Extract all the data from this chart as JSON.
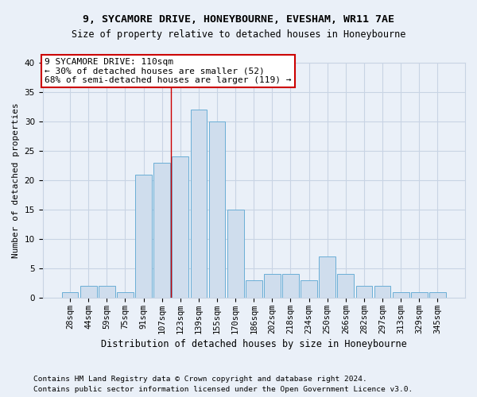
{
  "title1": "9, SYCAMORE DRIVE, HONEYBOURNE, EVESHAM, WR11 7AE",
  "title2": "Size of property relative to detached houses in Honeybourne",
  "xlabel": "Distribution of detached houses by size in Honeybourne",
  "ylabel": "Number of detached properties",
  "categories": [
    "28sqm",
    "44sqm",
    "59sqm",
    "75sqm",
    "91sqm",
    "107sqm",
    "123sqm",
    "139sqm",
    "155sqm",
    "170sqm",
    "186sqm",
    "202sqm",
    "218sqm",
    "234sqm",
    "250sqm",
    "266sqm",
    "282sqm",
    "297sqm",
    "313sqm",
    "329sqm",
    "345sqm"
  ],
  "values": [
    1,
    2,
    2,
    1,
    21,
    23,
    24,
    32,
    30,
    15,
    3,
    4,
    4,
    3,
    7,
    4,
    2,
    2,
    1,
    1,
    1
  ],
  "bar_color": "#cfdded",
  "bar_edge_color": "#6aaed6",
  "grid_color": "#c8d4e4",
  "background_color": "#eaf0f8",
  "annotation_line1": "9 SYCAMORE DRIVE: 110sqm",
  "annotation_line2": "← 30% of detached houses are smaller (52)",
  "annotation_line3": "68% of semi-detached houses are larger (119) →",
  "vline_x_index": 6,
  "vline_color": "#cc0000",
  "annotation_box_color": "#ffffff",
  "annotation_box_edge_color": "#cc0000",
  "footnote1": "Contains HM Land Registry data © Crown copyright and database right 2024.",
  "footnote2": "Contains public sector information licensed under the Open Government Licence v3.0.",
  "ylim": [
    0,
    40
  ],
  "yticks": [
    0,
    5,
    10,
    15,
    20,
    25,
    30,
    35,
    40
  ],
  "title1_fontsize": 9.5,
  "title2_fontsize": 8.5,
  "xlabel_fontsize": 8.5,
  "ylabel_fontsize": 8,
  "tick_fontsize": 7.5,
  "footnote_fontsize": 6.8,
  "annotation_fontsize": 8
}
